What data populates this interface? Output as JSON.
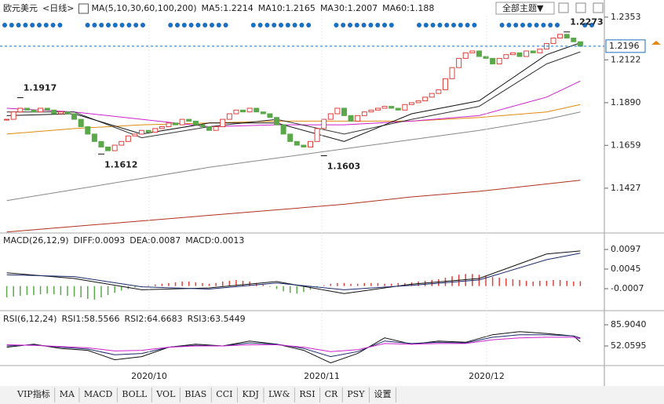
{
  "toolbar": {
    "theme": "全部主题▼"
  },
  "tabs": [
    "VIP指标",
    "MA",
    "MACD",
    "BOLL",
    "VOL",
    "BIAS",
    "CCI",
    "KDJ",
    "LW&",
    "RSI",
    "CR",
    "PSY",
    "设置"
  ],
  "x_labels": [
    "2020/10",
    "2020/11",
    "2020/12"
  ],
  "chart_data": [
    {
      "type": "candlestick",
      "title": "欧元美元",
      "period": "<日线>",
      "legend_title": "MA(5,10,30,60,100,200)",
      "xlim": [
        -1,
        86
      ],
      "ylim": [
        1.1193,
        1.2361
      ],
      "yticks": [
        1.2353,
        1.2122,
        {
          "value": 1.189,
          "label": "1.1890"
        },
        1.1659,
        1.1427
      ],
      "up_color": "#e0403a",
      "down_color": "#5aa84a",
      "closes": [
        1.18,
        1.184,
        1.186,
        1.185,
        1.184,
        1.186,
        1.185,
        1.183,
        1.184,
        1.183,
        1.18,
        1.176,
        1.172,
        1.168,
        1.165,
        1.163,
        1.166,
        1.168,
        1.171,
        1.172,
        1.174,
        1.173,
        1.175,
        1.176,
        1.178,
        1.177,
        1.18,
        1.179,
        1.177,
        1.176,
        1.174,
        1.176,
        1.18,
        1.183,
        1.185,
        1.184,
        1.186,
        1.184,
        1.183,
        1.181,
        1.177,
        1.172,
        1.168,
        1.166,
        1.165,
        1.168,
        1.175,
        1.18,
        1.183,
        1.186,
        1.182,
        1.179,
        1.182,
        1.184,
        1.185,
        1.186,
        1.187,
        1.186,
        1.185,
        1.188,
        1.189,
        1.19,
        1.192,
        1.194,
        1.196,
        1.202,
        1.208,
        1.213,
        1.216,
        1.217,
        1.214,
        1.213,
        1.21,
        1.213,
        1.215,
        1.216,
        1.214,
        1.217,
        1.216,
        1.218,
        1.221,
        1.224,
        1.226,
        1.224,
        1.222,
        1.2196
      ],
      "last_price": 1.2196,
      "annotations": [
        {
          "value": 1.1917,
          "x": 2,
          "color": "#c0392b"
        },
        {
          "value": 1.1612,
          "x": 14,
          "color": "#3a8a3a"
        },
        {
          "value": 1.1603,
          "x": 47,
          "color": "#3a8a3a"
        },
        {
          "value": 1.2273,
          "x": 83,
          "color": "#c0392b"
        }
      ],
      "series": [
        {
          "name": "MA5:1.2214",
          "color": "#111111",
          "x": [
            0,
            10,
            20,
            30,
            40,
            50,
            60,
            70,
            80,
            85
          ],
          "values": [
            1.182,
            1.183,
            1.172,
            1.178,
            1.178,
            1.168,
            1.183,
            1.19,
            1.215,
            1.2214
          ]
        },
        {
          "name": "MA10:1.2165",
          "color": "#333333",
          "x": [
            0,
            10,
            20,
            30,
            40,
            50,
            60,
            70,
            80,
            85
          ],
          "values": [
            1.184,
            1.184,
            1.17,
            1.176,
            1.18,
            1.172,
            1.18,
            1.187,
            1.21,
            1.2165
          ]
        },
        {
          "name": "MA30:1.2007",
          "color": "#cc22cc",
          "x": [
            0,
            10,
            20,
            30,
            40,
            50,
            60,
            70,
            80,
            85
          ],
          "values": [
            1.186,
            1.184,
            1.18,
            1.176,
            1.177,
            1.177,
            1.179,
            1.182,
            1.192,
            1.2007
          ]
        },
        {
          "name": "MA60:1.188",
          "color": "#e08a10",
          "x": [
            0,
            10,
            20,
            30,
            40,
            50,
            60,
            70,
            80,
            85
          ],
          "values": [
            1.172,
            1.175,
            1.177,
            1.178,
            1.179,
            1.179,
            1.179,
            1.181,
            1.184,
            1.188
          ]
        },
        {
          "color": "#888888",
          "x": [
            0,
            10,
            20,
            30,
            40,
            50,
            60,
            70,
            80,
            85
          ],
          "values": [
            1.136,
            1.142,
            1.148,
            1.154,
            1.159,
            1.164,
            1.169,
            1.174,
            1.18,
            1.184
          ]
        },
        {
          "color": "#b03020",
          "x": [
            0,
            10,
            20,
            30,
            40,
            50,
            60,
            70,
            80,
            85
          ],
          "values": [
            1.119,
            1.122,
            1.125,
            1.128,
            1.131,
            1.134,
            1.138,
            1.141,
            1.145,
            1.147
          ]
        }
      ]
    },
    {
      "type": "macd",
      "title": "MACD(26,12,9)",
      "xlim": [
        -1,
        86
      ],
      "ylim": [
        -0.00569,
        0.01344
      ],
      "yticks": [
        0.0097,
        0.0045,
        -0.0007
      ],
      "up_color": "#e0403a",
      "down_color": "#5aa84a",
      "bars": {
        "name": "MACD:0.0013",
        "color": "#cc22cc",
        "values": [
          -0.003,
          -0.0028,
          -0.0026,
          -0.0024,
          -0.0024,
          -0.0022,
          -0.002,
          -0.0022,
          -0.0024,
          -0.0026,
          -0.0028,
          -0.003,
          -0.0034,
          -0.0036,
          -0.003,
          -0.0024,
          -0.0018,
          -0.0012,
          -0.0008,
          -0.0004,
          -0.0002,
          0.0002,
          0.0004,
          0.0006,
          0.0008,
          0.001,
          0.0012,
          0.0012,
          0.001,
          0.0008,
          0.0006,
          0.0008,
          0.0012,
          0.0014,
          0.0016,
          0.0014,
          0.0012,
          0.0008,
          0.0004,
          -0.0002,
          -0.0008,
          -0.0014,
          -0.0018,
          -0.002,
          -0.0016,
          -0.001,
          -0.0004,
          0.0002,
          0.0006,
          0.0008,
          0.0008,
          0.0006,
          0.0006,
          0.0008,
          0.0008,
          0.0008,
          0.0006,
          0.0006,
          0.0008,
          0.0008,
          0.001,
          0.0012,
          0.0014,
          0.0016,
          0.0018,
          0.0022,
          0.0026,
          0.003,
          0.0032,
          0.0032,
          0.003,
          0.0028,
          0.0024,
          0.0022,
          0.002,
          0.0018,
          0.0016,
          0.0014,
          0.0012,
          0.0014,
          0.0014,
          0.0016,
          0.0016,
          0.0014,
          0.0012,
          0.0013
        ]
      },
      "series": [
        {
          "name": "DIFF:0.0093",
          "color": "#111111",
          "x": [
            0,
            10,
            20,
            30,
            40,
            50,
            60,
            70,
            80,
            85
          ],
          "values": [
            0.0035,
            0.002,
            -0.001,
            -0.0005,
            0.0012,
            -0.002,
            0.0005,
            0.002,
            0.0085,
            0.0093
          ]
        },
        {
          "name": "DEA:0.0087",
          "color": "#1a2a6a",
          "x": [
            0,
            10,
            20,
            30,
            40,
            50,
            60,
            70,
            80,
            85
          ],
          "values": [
            0.003,
            0.0025,
            -0.0002,
            -0.0008,
            0.0008,
            -0.001,
            0.0002,
            0.0016,
            0.007,
            0.0087
          ]
        }
      ]
    },
    {
      "type": "line",
      "title": "RSI(6,12,24)",
      "xlim": [
        -1,
        86
      ],
      "ylim": [
        25.73,
        103.46
      ],
      "yticks": [
        {
          "value": 85.904,
          "label": "85.9040"
        },
        52.0595
      ],
      "series": [
        {
          "name": "RSI1:58.5566",
          "color": "#111111",
          "x": [
            0,
            4,
            8,
            12,
            16,
            20,
            24,
            28,
            32,
            36,
            40,
            44,
            48,
            52,
            56,
            60,
            64,
            68,
            72,
            76,
            80,
            84,
            85
          ],
          "values": [
            50,
            55,
            48,
            45,
            30,
            35,
            50,
            55,
            52,
            60,
            55,
            45,
            25,
            40,
            65,
            55,
            60,
            58,
            70,
            75,
            72,
            68,
            58.5566
          ]
        },
        {
          "name": "RSI2:64.6683",
          "color": "#1a2a6a",
          "x": [
            0,
            4,
            8,
            12,
            16,
            20,
            24,
            28,
            32,
            36,
            40,
            44,
            48,
            52,
            56,
            60,
            64,
            68,
            72,
            76,
            80,
            84,
            85
          ],
          "values": [
            52,
            54,
            50,
            47,
            38,
            40,
            50,
            53,
            52,
            57,
            55,
            48,
            35,
            43,
            60,
            56,
            58,
            57,
            66,
            70,
            70,
            68,
            64.6683
          ]
        },
        {
          "name": "RSI3:63.5449",
          "color": "#cc22cc",
          "x": [
            0,
            4,
            8,
            12,
            16,
            20,
            24,
            28,
            32,
            36,
            40,
            44,
            48,
            52,
            56,
            60,
            64,
            68,
            72,
            76,
            80,
            84,
            85
          ],
          "values": [
            54,
            53,
            51,
            49,
            44,
            45,
            50,
            52,
            52,
            54,
            54,
            50,
            43,
            46,
            56,
            55,
            56,
            56,
            62,
            65,
            66,
            66,
            63.5449
          ]
        }
      ]
    }
  ]
}
